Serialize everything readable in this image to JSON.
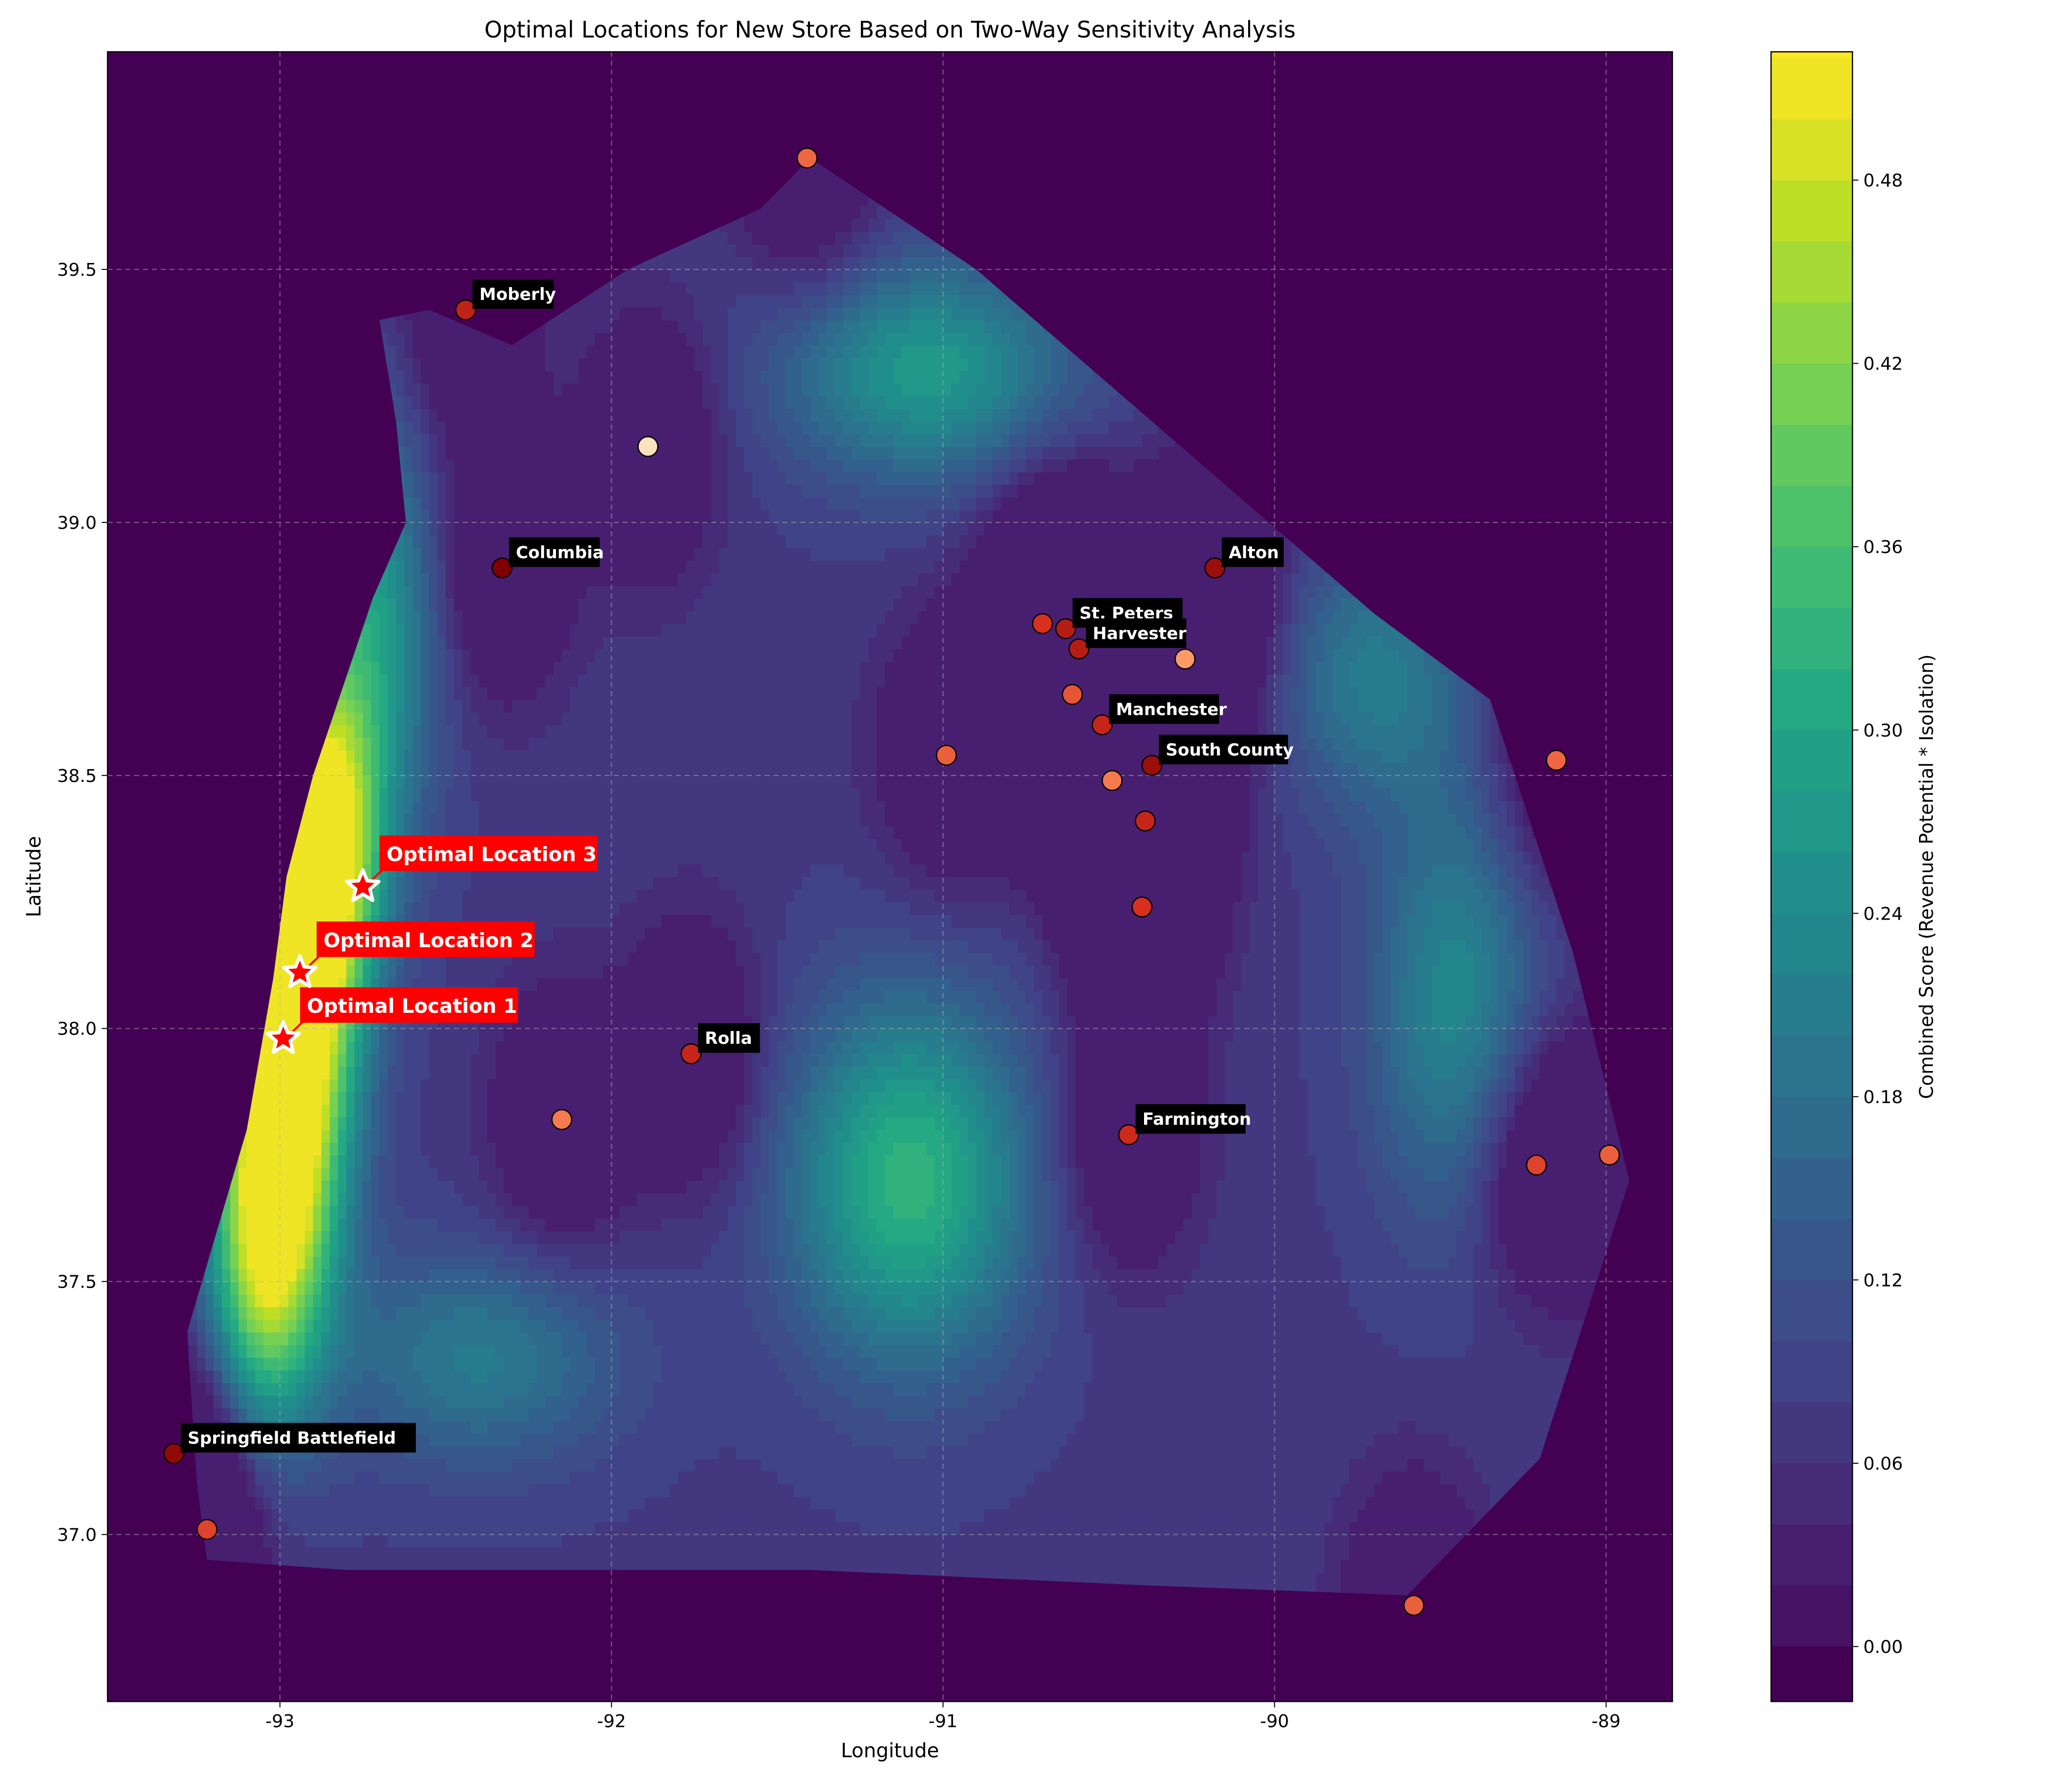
{
  "chart_data": {
    "type": "contour",
    "title": "Optimal Locations for New Store Based on Two-Way Sensitivity Analysis",
    "xlabel": "Longitude",
    "ylabel": "Latitude",
    "xlim": [
      -93.52,
      -88.8
    ],
    "ylim": [
      36.67,
      39.93
    ],
    "x_ticks": [
      -93,
      -92,
      -91,
      -90,
      -89
    ],
    "y_ticks": [
      37.0,
      37.5,
      38.0,
      38.5,
      39.0,
      39.5
    ],
    "x_tick_labels": [
      "-93",
      "-92",
      "-91",
      "-90",
      "-89"
    ],
    "y_tick_labels": [
      "37.0",
      "37.5",
      "38.0",
      "38.5",
      "39.0",
      "39.5"
    ],
    "grid": true,
    "colormap": "viridis",
    "colorbar": {
      "label": "Combined Score (Revenue Potential * Isolation)",
      "range": [
        -0.018,
        0.522
      ],
      "ticks": [
        0.0,
        0.06,
        0.12,
        0.18,
        0.24,
        0.3,
        0.36,
        0.42,
        0.48
      ],
      "tick_labels": [
        "0.00",
        "0.06",
        "0.12",
        "0.18",
        "0.24",
        "0.30",
        "0.36",
        "0.42",
        "0.48"
      ]
    },
    "region_boundary": [
      [
        -93.22,
        36.95
      ],
      [
        -92.8,
        36.93
      ],
      [
        -91.4,
        36.93
      ],
      [
        -90.4,
        36.9
      ],
      [
        -89.6,
        36.88
      ],
      [
        -89.2,
        37.15
      ],
      [
        -88.93,
        37.7
      ],
      [
        -89.1,
        38.15
      ],
      [
        -89.35,
        38.65
      ],
      [
        -89.7,
        38.82
      ],
      [
        -90.9,
        39.5
      ],
      [
        -91.4,
        39.72
      ],
      [
        -91.55,
        39.62
      ],
      [
        -91.95,
        39.5
      ],
      [
        -92.3,
        39.35
      ],
      [
        -92.55,
        39.42
      ],
      [
        -92.7,
        39.4
      ],
      [
        -92.65,
        39.2
      ],
      [
        -92.62,
        39.0
      ],
      [
        -92.72,
        38.85
      ],
      [
        -92.9,
        38.5
      ],
      [
        -92.98,
        38.3
      ],
      [
        -93.02,
        38.1
      ],
      [
        -93.1,
        37.8
      ],
      [
        -93.28,
        37.4
      ],
      [
        -93.25,
        37.1
      ]
    ],
    "hotspots": [
      {
        "lon": -92.97,
        "lat": 37.95,
        "score": 0.48,
        "sx": 0.13,
        "sy": 0.3
      },
      {
        "lon": -92.88,
        "lat": 38.35,
        "score": 0.44,
        "sx": 0.12,
        "sy": 0.22
      },
      {
        "lon": -93.05,
        "lat": 37.55,
        "score": 0.33,
        "sx": 0.12,
        "sy": 0.25
      },
      {
        "lon": -92.75,
        "lat": 38.8,
        "score": 0.22,
        "sx": 0.15,
        "sy": 0.3
      },
      {
        "lon": -91.1,
        "lat": 37.7,
        "score": 0.26,
        "sx": 0.25,
        "sy": 0.25
      },
      {
        "lon": -91.05,
        "lat": 39.3,
        "score": 0.2,
        "sx": 0.3,
        "sy": 0.15
      },
      {
        "lon": -89.45,
        "lat": 38.05,
        "score": 0.16,
        "sx": 0.18,
        "sy": 0.3
      },
      {
        "lon": -89.7,
        "lat": 38.7,
        "score": 0.13,
        "sx": 0.2,
        "sy": 0.18
      },
      {
        "lon": -92.4,
        "lat": 37.35,
        "score": 0.13,
        "sx": 0.3,
        "sy": 0.15
      }
    ],
    "stores": [
      {
        "name": "Moberly",
        "lon": -92.44,
        "lat": 39.42,
        "score": 0.82
      },
      {
        "name": "",
        "lon": -91.89,
        "lat": 39.15,
        "score": 0.15
      },
      {
        "name": "Columbia",
        "lon": -92.33,
        "lat": 38.91,
        "score": 1.0
      },
      {
        "name": "",
        "lon": -91.41,
        "lat": 39.72,
        "score": 0.6
      },
      {
        "name": "Alton",
        "lon": -90.18,
        "lat": 38.91,
        "score": 0.92
      },
      {
        "name": "St. Peters",
        "lon": -90.63,
        "lat": 38.79,
        "score": 0.85
      },
      {
        "name": "Harvester",
        "lon": -90.59,
        "lat": 38.75,
        "score": 0.85
      },
      {
        "name": "",
        "lon": -90.7,
        "lat": 38.8,
        "score": 0.75
      },
      {
        "name": "",
        "lon": -90.27,
        "lat": 38.73,
        "score": 0.45
      },
      {
        "name": "",
        "lon": -90.61,
        "lat": 38.66,
        "score": 0.65
      },
      {
        "name": "Manchester",
        "lon": -90.52,
        "lat": 38.6,
        "score": 0.8
      },
      {
        "name": "South County",
        "lon": -90.37,
        "lat": 38.52,
        "score": 0.92
      },
      {
        "name": "",
        "lon": -90.49,
        "lat": 38.49,
        "score": 0.55
      },
      {
        "name": "",
        "lon": -90.99,
        "lat": 38.54,
        "score": 0.62
      },
      {
        "name": "",
        "lon": -90.39,
        "lat": 38.41,
        "score": 0.8
      },
      {
        "name": "",
        "lon": -90.4,
        "lat": 38.24,
        "score": 0.75
      },
      {
        "name": "Rolla",
        "lon": -91.76,
        "lat": 37.95,
        "score": 0.8
      },
      {
        "name": "",
        "lon": -92.15,
        "lat": 37.82,
        "score": 0.55
      },
      {
        "name": "Farmington",
        "lon": -90.44,
        "lat": 37.79,
        "score": 0.78
      },
      {
        "name": "",
        "lon": -89.15,
        "lat": 38.53,
        "score": 0.6
      },
      {
        "name": "",
        "lon": -89.21,
        "lat": 37.73,
        "score": 0.7
      },
      {
        "name": "",
        "lon": -88.99,
        "lat": 37.75,
        "score": 0.62
      },
      {
        "name": "Springfield Battlefield",
        "lon": -93.32,
        "lat": 37.16,
        "score": 0.95
      },
      {
        "name": "",
        "lon": -93.22,
        "lat": 37.01,
        "score": 0.7
      },
      {
        "name": "",
        "lon": -89.58,
        "lat": 36.86,
        "score": 0.62
      }
    ],
    "optimal_locations": [
      {
        "label": "Optimal Location 1",
        "lon": -92.99,
        "lat": 37.98
      },
      {
        "label": "Optimal Location 2",
        "lon": -92.94,
        "lat": 38.11
      },
      {
        "label": "Optimal Location 3",
        "lon": -92.75,
        "lat": 38.28
      }
    ],
    "colors": {
      "background": "#440154",
      "label_box": "#000000",
      "label_text": "#ffffff",
      "optimal_box": "#ff0000",
      "optimal_text": "#ffffff",
      "marker_edge": "#000000",
      "arrow": "#ff0000",
      "star_fill": "#ff0000",
      "star_edge": "#ffffff",
      "grid": "#b0b0b0"
    }
  }
}
